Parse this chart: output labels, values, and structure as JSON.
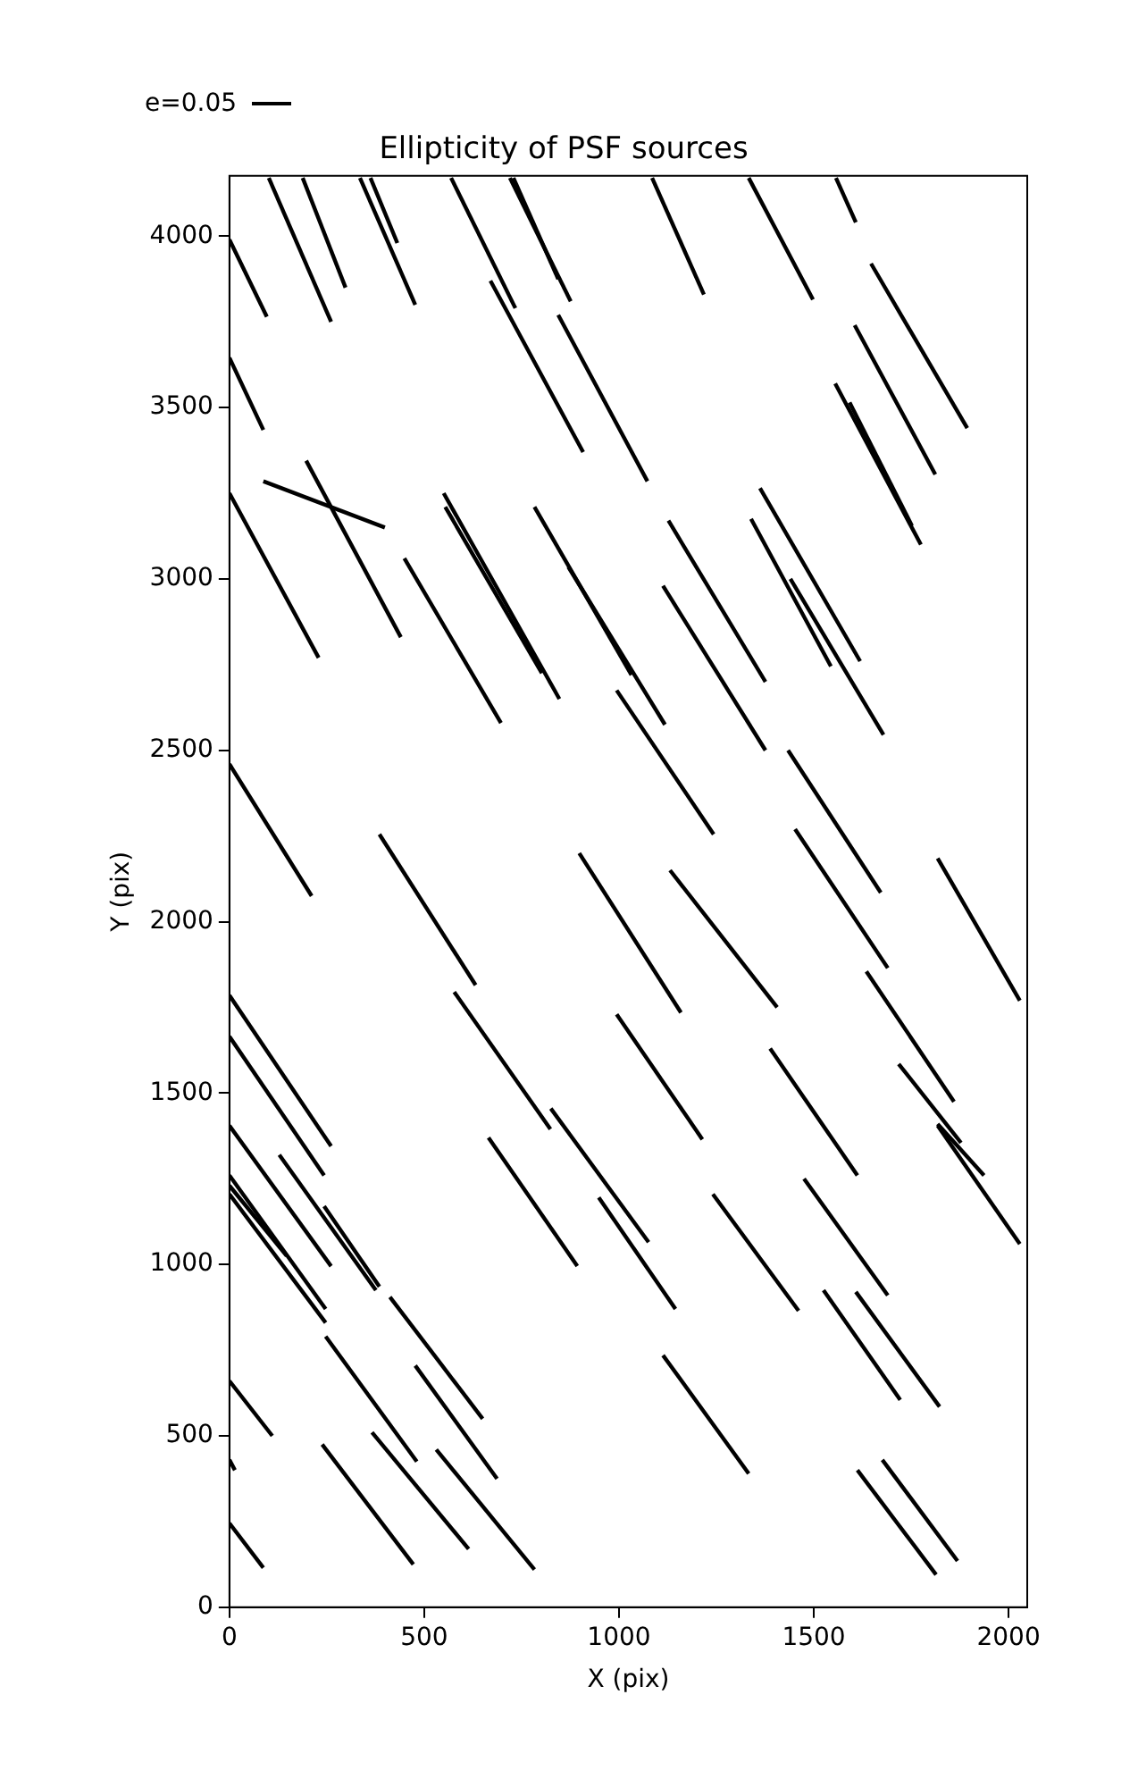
{
  "chart_data": {
    "type": "line",
    "title": "Ellipticity of PSF sources",
    "xlabel": "X (pix)",
    "ylabel": "Y (pix)",
    "annotations": [
      "e=0.05"
    ],
    "xlim": [
      0,
      2048
    ],
    "ylim": [
      0,
      4176
    ],
    "xticks": [
      0,
      500,
      1000,
      1500,
      2000
    ],
    "yticks": [
      0,
      500,
      1000,
      1500,
      2000,
      2500,
      3000,
      3500,
      4000
    ],
    "grid": false,
    "legend": false,
    "marker": "none",
    "line_style": "solid",
    "series": [
      {
        "color": "#000000",
        "x": [
          0,
          96
        ],
        "values": [
          3990,
          3765
        ]
      },
      {
        "color": "#000000",
        "x": [
          101,
          261
        ],
        "values": [
          4170,
          3750
        ]
      },
      {
        "color": "#000000",
        "x": [
          188,
          298
        ],
        "values": [
          4170,
          3850
        ]
      },
      {
        "color": "#000000",
        "x": [
          335,
          477
        ],
        "values": [
          4170,
          3800
        ]
      },
      {
        "color": "#000000",
        "x": [
          362,
          431
        ],
        "values": [
          4170,
          3980
        ]
      },
      {
        "color": "#000000",
        "x": [
          569,
          734
        ],
        "values": [
          4170,
          3790
        ]
      },
      {
        "color": "#000000",
        "x": [
          720,
          876
        ],
        "values": [
          4170,
          3810
        ]
      },
      {
        "color": "#000000",
        "x": [
          729,
          844
        ],
        "values": [
          4170,
          3875
        ]
      },
      {
        "color": "#000000",
        "x": [
          670,
          908
        ],
        "values": [
          3870,
          3370
        ]
      },
      {
        "color": "#000000",
        "x": [
          844,
          1073
        ],
        "values": [
          3770,
          3285
        ]
      },
      {
        "color": "#000000",
        "x": [
          0,
          87
        ],
        "values": [
          3645,
          3435
        ]
      },
      {
        "color": "#000000",
        "x": [
          87,
          399
        ],
        "values": [
          3285,
          3150
        ]
      },
      {
        "color": "#000000",
        "x": [
          197,
          440
        ],
        "values": [
          3345,
          2830
        ]
      },
      {
        "color": "#000000",
        "x": [
          0,
          229
        ],
        "values": [
          3250,
          2770
        ]
      },
      {
        "color": "#000000",
        "x": [
          449,
          697
        ],
        "values": [
          3060,
          2580
        ]
      },
      {
        "color": "#000000",
        "x": [
          550,
          847
        ],
        "values": [
          3250,
          2650
        ]
      },
      {
        "color": "#000000",
        "x": [
          554,
          802
        ],
        "values": [
          3210,
          2725
        ]
      },
      {
        "color": "#000000",
        "x": [
          783,
          1032
        ],
        "values": [
          3210,
          2720
        ]
      },
      {
        "color": "#000000",
        "x": [
          870,
          1118
        ],
        "values": [
          3035,
          2575
        ]
      },
      {
        "color": "#000000",
        "x": [
          1085,
          1218
        ],
        "values": [
          4170,
          3830
        ]
      },
      {
        "color": "#000000",
        "x": [
          1333,
          1498
        ],
        "values": [
          4170,
          3815
        ]
      },
      {
        "color": "#000000",
        "x": [
          1557,
          1608
        ],
        "values": [
          4170,
          4040
        ]
      },
      {
        "color": "#000000",
        "x": [
          1647,
          1894
        ],
        "values": [
          3920,
          3440
        ]
      },
      {
        "color": "#000000",
        "x": [
          1605,
          1812
        ],
        "values": [
          3740,
          3305
        ]
      },
      {
        "color": "#000000",
        "x": [
          1555,
          1775
        ],
        "values": [
          3570,
          3100
        ]
      },
      {
        "color": "#000000",
        "x": [
          1592,
          1752
        ],
        "values": [
          3515,
          3155
        ]
      },
      {
        "color": "#000000",
        "x": [
          1362,
          1619
        ],
        "values": [
          3265,
          2760
        ]
      },
      {
        "color": "#000000",
        "x": [
          1339,
          1544
        ],
        "values": [
          3175,
          2745
        ]
      },
      {
        "color": "#000000",
        "x": [
          1440,
          1679
        ],
        "values": [
          3000,
          2545
        ]
      },
      {
        "color": "#000000",
        "x": [
          1127,
          1376
        ],
        "values": [
          3170,
          2700
        ]
      },
      {
        "color": "#000000",
        "x": [
          1113,
          1376
        ],
        "values": [
          2980,
          2500
        ]
      },
      {
        "color": "#000000",
        "x": [
          994,
          1243
        ],
        "values": [
          2675,
          2255
        ]
      },
      {
        "color": "#000000",
        "x": [
          1434,
          1672
        ],
        "values": [
          2500,
          2085
        ]
      },
      {
        "color": "#000000",
        "x": [
          1452,
          1690
        ],
        "values": [
          2270,
          1865
        ]
      },
      {
        "color": "#000000",
        "x": [
          1818,
          2029
        ],
        "values": [
          2185,
          1770
        ]
      },
      {
        "color": "#000000",
        "x": [
          1131,
          1406
        ],
        "values": [
          2150,
          1750
        ]
      },
      {
        "color": "#000000",
        "x": [
          898,
          1159
        ],
        "values": [
          2200,
          1735
        ]
      },
      {
        "color": "#000000",
        "x": [
          1635,
          1860
        ],
        "values": [
          1855,
          1475
        ]
      },
      {
        "color": "#000000",
        "x": [
          994,
          1214
        ],
        "values": [
          1730,
          1365
        ]
      },
      {
        "color": "#000000",
        "x": [
          1388,
          1612
        ],
        "values": [
          1630,
          1260
        ]
      },
      {
        "color": "#000000",
        "x": [
          1718,
          1878
        ],
        "values": [
          1585,
          1355
        ]
      },
      {
        "color": "#000000",
        "x": [
          1818,
          1937
        ],
        "values": [
          1410,
          1260
        ]
      },
      {
        "color": "#000000",
        "x": [
          1818,
          2029
        ],
        "values": [
          1405,
          1060
        ]
      },
      {
        "color": "#000000",
        "x": [
          0,
          211
        ],
        "values": [
          2460,
          2075
        ]
      },
      {
        "color": "#000000",
        "x": [
          385,
          632
        ],
        "values": [
          2255,
          1815
        ]
      },
      {
        "color": "#000000",
        "x": [
          577,
          824
        ],
        "values": [
          1795,
          1395
        ]
      },
      {
        "color": "#000000",
        "x": [
          0,
          261
        ],
        "values": [
          1785,
          1345
        ]
      },
      {
        "color": "#000000",
        "x": [
          0,
          243
        ],
        "values": [
          1665,
          1260
        ]
      },
      {
        "color": "#000000",
        "x": [
          0,
          261
        ],
        "values": [
          1405,
          995
        ]
      },
      {
        "color": "#000000",
        "x": [
          0,
          247
        ],
        "values": [
          1260,
          870
        ]
      },
      {
        "color": "#000000",
        "x": [
          0,
          147
        ],
        "values": [
          1230,
          1025
        ]
      },
      {
        "color": "#000000",
        "x": [
          0,
          247
        ],
        "values": [
          1205,
          830
        ]
      },
      {
        "color": "#000000",
        "x": [
          128,
          376
        ],
        "values": [
          1320,
          925
        ]
      },
      {
        "color": "#000000",
        "x": [
          243,
          385
        ],
        "values": [
          1170,
          935
        ]
      },
      {
        "color": "#000000",
        "x": [
          412,
          650
        ],
        "values": [
          905,
          550
        ]
      },
      {
        "color": "#000000",
        "x": [
          247,
          481
        ],
        "values": [
          790,
          425
        ]
      },
      {
        "color": "#000000",
        "x": [
          477,
          687
        ],
        "values": [
          705,
          375
        ]
      },
      {
        "color": "#000000",
        "x": [
          0,
          110
        ],
        "values": [
          660,
          500
        ]
      },
      {
        "color": "#000000",
        "x": [
          0,
          14
        ],
        "values": [
          430,
          400
        ]
      },
      {
        "color": "#000000",
        "x": [
          238,
          472
        ],
        "values": [
          475,
          125
        ]
      },
      {
        "color": "#000000",
        "x": [
          366,
          614
        ],
        "values": [
          510,
          170
        ]
      },
      {
        "color": "#000000",
        "x": [
          531,
          783
        ],
        "values": [
          460,
          110
        ]
      },
      {
        "color": "#000000",
        "x": [
          0,
          87
        ],
        "values": [
          245,
          115
        ]
      },
      {
        "color": "#000000",
        "x": [
          665,
          893
        ],
        "values": [
          1370,
          995
        ]
      },
      {
        "color": "#000000",
        "x": [
          825,
          1076
        ],
        "values": [
          1455,
          1065
        ]
      },
      {
        "color": "#000000",
        "x": [
          948,
          1145
        ],
        "values": [
          1195,
          870
        ]
      },
      {
        "color": "#000000",
        "x": [
          1241,
          1461
        ],
        "values": [
          1205,
          865
        ]
      },
      {
        "color": "#000000",
        "x": [
          1475,
          1690
        ],
        "values": [
          1250,
          910
        ]
      },
      {
        "color": "#000000",
        "x": [
          1525,
          1722
        ],
        "values": [
          925,
          605
        ]
      },
      {
        "color": "#000000",
        "x": [
          1608,
          1823
        ],
        "values": [
          920,
          585
        ]
      },
      {
        "color": "#000000",
        "x": [
          1113,
          1333
        ],
        "values": [
          735,
          390
        ]
      },
      {
        "color": "#000000",
        "x": [
          1612,
          1814
        ],
        "values": [
          400,
          95
        ]
      },
      {
        "color": "#000000",
        "x": [
          1676,
          1869
        ],
        "values": [
          430,
          135
        ]
      }
    ]
  }
}
